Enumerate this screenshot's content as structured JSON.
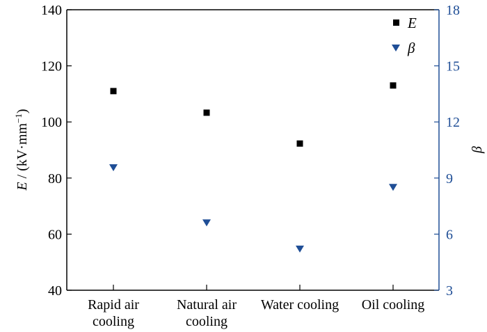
{
  "chart_data": {
    "type": "scatter",
    "categories": [
      [
        "Rapid air",
        "cooling"
      ],
      [
        "Natural air",
        "cooling"
      ],
      [
        "Water cooling"
      ],
      [
        "Oil cooling"
      ]
    ],
    "series": [
      {
        "name": "E",
        "axis": "left",
        "marker": "square",
        "color": "#000000",
        "values": [
          111,
          103.3,
          92.3,
          113
        ]
      },
      {
        "name": "β",
        "axis": "right",
        "marker": "triangle-down",
        "color": "#1f4e96",
        "values": [
          9.55,
          6.6,
          5.2,
          8.5
        ]
      }
    ],
    "y_left": {
      "label_parts": [
        "E",
        " / (kV·mm",
        "−1",
        ")"
      ],
      "lim": [
        40,
        140
      ],
      "ticks": [
        "40",
        "60",
        "80",
        "100",
        "120",
        "140"
      ]
    },
    "y_right": {
      "label": "β",
      "lim": [
        3,
        18
      ],
      "ticks": [
        "3",
        "6",
        "9",
        "12",
        "15",
        "18"
      ],
      "color": "#1f4e96"
    },
    "grid": false,
    "legend_position": "top-right"
  }
}
